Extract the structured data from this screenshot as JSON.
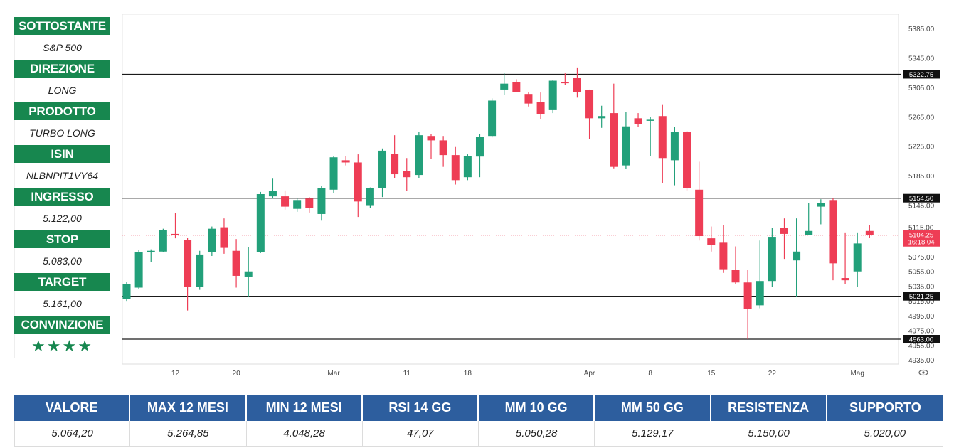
{
  "info_panel": {
    "items": [
      {
        "label": "SOTTOSTANTE",
        "value": "S&P 500"
      },
      {
        "label": "DIREZIONE",
        "value": "LONG"
      },
      {
        "label": "PRODOTTO",
        "value": "TURBO LONG"
      },
      {
        "label": "ISIN",
        "value": "NLBNPIT1VY64"
      },
      {
        "label": "INGRESSO",
        "value": "5.122,00"
      },
      {
        "label": "STOP",
        "value": "5.083,00"
      },
      {
        "label": "TARGET",
        "value": "5.161,00"
      },
      {
        "label": "CONVINZIONE",
        "value": "★★★★"
      }
    ]
  },
  "stats_table": {
    "headers": [
      "VALORE",
      "MAX 12 MESI",
      "MIN 12 MESI",
      "RSI 14 GG",
      "MM 10 GG",
      "MM 50 GG",
      "RESISTENZA",
      "SUPPORTO"
    ],
    "values": [
      "5.064,20",
      "5.264,85",
      "4.048,28",
      "47,07",
      "5.050,28",
      "5.129,17",
      "5.150,00",
      "5.020,00"
    ]
  },
  "colors": {
    "up": "#22a07a",
    "down": "#ee3d55",
    "header_green": "#17874f",
    "header_blue": "#2d5e9e"
  },
  "chart_data": {
    "type": "candlestick",
    "ylim": [
      4925,
      5400
    ],
    "yticks": [
      4935,
      4955,
      4975,
      4995,
      5015,
      5035,
      5055,
      5075,
      5115,
      5145,
      5185,
      5225,
      5265,
      5305,
      5345,
      5385
    ],
    "ytick_labels": [
      "4935.00",
      "4955.00",
      "4975.00",
      "4995.00",
      "5015.00",
      "5035.00",
      "5055.00",
      "5075.00",
      "5115.00",
      "5145.00",
      "5185.00",
      "5225.00",
      "5265.00",
      "5305.00",
      "5345.00",
      "5385.00"
    ],
    "x_ticks": [
      {
        "index": 4,
        "label": "12"
      },
      {
        "index": 9,
        "label": "20"
      },
      {
        "index": 17,
        "label": "Mar"
      },
      {
        "index": 23,
        "label": "11"
      },
      {
        "index": 28,
        "label": "18"
      },
      {
        "index": 38,
        "label": "Apr"
      },
      {
        "index": 43,
        "label": "8"
      },
      {
        "index": 48,
        "label": "15"
      },
      {
        "index": 53,
        "label": "22"
      },
      {
        "index": 60,
        "label": "Mag"
      }
    ],
    "hlines": [
      {
        "value": 5322.75,
        "label": "5322.75"
      },
      {
        "value": 5154.5,
        "label": "5154.50"
      },
      {
        "value": 5021.25,
        "label": "5021.25"
      },
      {
        "value": 4963.0,
        "label": "4963.00"
      }
    ],
    "last_price": {
      "value": 5104.25,
      "label": "5104.25",
      "timer": "16:18:04"
    },
    "candles": [
      {
        "o": 5018,
        "h": 5041,
        "l": 5015,
        "c": 5038
      },
      {
        "o": 5033,
        "h": 5084,
        "l": 5031,
        "c": 5081
      },
      {
        "o": 5081,
        "h": 5085,
        "l": 5068,
        "c": 5083
      },
      {
        "o": 5082,
        "h": 5113,
        "l": 5081,
        "c": 5111
      },
      {
        "o": 5106,
        "h": 5134,
        "l": 5100,
        "c": 5104
      },
      {
        "o": 5098,
        "h": 5101,
        "l": 5002,
        "c": 5034
      },
      {
        "o": 5034,
        "h": 5083,
        "l": 5030,
        "c": 5078
      },
      {
        "o": 5081,
        "h": 5116,
        "l": 5076,
        "c": 5113
      },
      {
        "o": 5115,
        "h": 5127,
        "l": 5079,
        "c": 5087
      },
      {
        "o": 5083,
        "h": 5099,
        "l": 5033,
        "c": 5049
      },
      {
        "o": 5048,
        "h": 5088,
        "l": 5020,
        "c": 5055
      },
      {
        "o": 5081,
        "h": 5163,
        "l": 5080,
        "c": 5160
      },
      {
        "o": 5157,
        "h": 5181,
        "l": 5154,
        "c": 5164
      },
      {
        "o": 5157,
        "h": 5165,
        "l": 5139,
        "c": 5143
      },
      {
        "o": 5140,
        "h": 5154,
        "l": 5136,
        "c": 5152
      },
      {
        "o": 5154,
        "h": 5156,
        "l": 5135,
        "c": 5141
      },
      {
        "o": 5133,
        "h": 5171,
        "l": 5124,
        "c": 5168
      },
      {
        "o": 5166,
        "h": 5212,
        "l": 5161,
        "c": 5210
      },
      {
        "o": 5206,
        "h": 5212,
        "l": 5199,
        "c": 5203
      },
      {
        "o": 5203,
        "h": 5214,
        "l": 5129,
        "c": 5150
      },
      {
        "o": 5145,
        "h": 5169,
        "l": 5141,
        "c": 5168
      },
      {
        "o": 5168,
        "h": 5222,
        "l": 5156,
        "c": 5219
      },
      {
        "o": 5215,
        "h": 5240,
        "l": 5182,
        "c": 5187
      },
      {
        "o": 5191,
        "h": 5209,
        "l": 5164,
        "c": 5183
      },
      {
        "o": 5186,
        "h": 5244,
        "l": 5182,
        "c": 5240
      },
      {
        "o": 5239,
        "h": 5242,
        "l": 5208,
        "c": 5233
      },
      {
        "o": 5233,
        "h": 5239,
        "l": 5197,
        "c": 5213
      },
      {
        "o": 5213,
        "h": 5224,
        "l": 5173,
        "c": 5179
      },
      {
        "o": 5183,
        "h": 5214,
        "l": 5179,
        "c": 5212
      },
      {
        "o": 5211,
        "h": 5242,
        "l": 5183,
        "c": 5238
      },
      {
        "o": 5239,
        "h": 5290,
        "l": 5237,
        "c": 5287
      },
      {
        "o": 5302,
        "h": 5325,
        "l": 5295,
        "c": 5310
      },
      {
        "o": 5312,
        "h": 5316,
        "l": 5300,
        "c": 5299
      },
      {
        "o": 5296,
        "h": 5298,
        "l": 5279,
        "c": 5283
      },
      {
        "o": 5285,
        "h": 5298,
        "l": 5262,
        "c": 5269
      },
      {
        "o": 5275,
        "h": 5315,
        "l": 5270,
        "c": 5314
      },
      {
        "o": 5312,
        "h": 5324,
        "l": 5308,
        "c": 5311
      },
      {
        "o": 5318,
        "h": 5332,
        "l": 5291,
        "c": 5299
      },
      {
        "o": 5301,
        "h": 5302,
        "l": 5235,
        "c": 5263
      },
      {
        "o": 5263,
        "h": 5280,
        "l": 5250,
        "c": 5266
      },
      {
        "o": 5270,
        "h": 5310,
        "l": 5195,
        "c": 5197
      },
      {
        "o": 5199,
        "h": 5272,
        "l": 5194,
        "c": 5252
      },
      {
        "o": 5263,
        "h": 5270,
        "l": 5251,
        "c": 5255
      },
      {
        "o": 5260,
        "h": 5265,
        "l": 5212,
        "c": 5261
      },
      {
        "o": 5266,
        "h": 5282,
        "l": 5175,
        "c": 5209
      },
      {
        "o": 5206,
        "h": 5251,
        "l": 5172,
        "c": 5244
      },
      {
        "o": 5244,
        "h": 5246,
        "l": 5165,
        "c": 5168
      },
      {
        "o": 5166,
        "h": 5204,
        "l": 5097,
        "c": 5103
      },
      {
        "o": 5100,
        "h": 5116,
        "l": 5082,
        "c": 5091
      },
      {
        "o": 5094,
        "h": 5118,
        "l": 5053,
        "c": 5058
      },
      {
        "o": 5057,
        "h": 5089,
        "l": 5038,
        "c": 5040
      },
      {
        "o": 5040,
        "h": 5057,
        "l": 4963,
        "c": 5004
      },
      {
        "o": 5009,
        "h": 5097,
        "l": 5005,
        "c": 5042
      },
      {
        "o": 5042,
        "h": 5114,
        "l": 5034,
        "c": 5102
      },
      {
        "o": 5114,
        "h": 5127,
        "l": 5072,
        "c": 5106
      },
      {
        "o": 5070,
        "h": 5127,
        "l": 5021,
        "c": 5082
      },
      {
        "o": 5104,
        "h": 5148,
        "l": 5104,
        "c": 5110
      },
      {
        "o": 5143,
        "h": 5153,
        "l": 5119,
        "c": 5148
      },
      {
        "o": 5152,
        "h": 5155,
        "l": 5043,
        "c": 5066
      },
      {
        "o": 5046,
        "h": 5108,
        "l": 5038,
        "c": 5043
      },
      {
        "o": 5055,
        "h": 5108,
        "l": 5034,
        "c": 5093
      },
      {
        "o": 5110,
        "h": 5118,
        "l": 5101,
        "c": 5104
      }
    ]
  }
}
